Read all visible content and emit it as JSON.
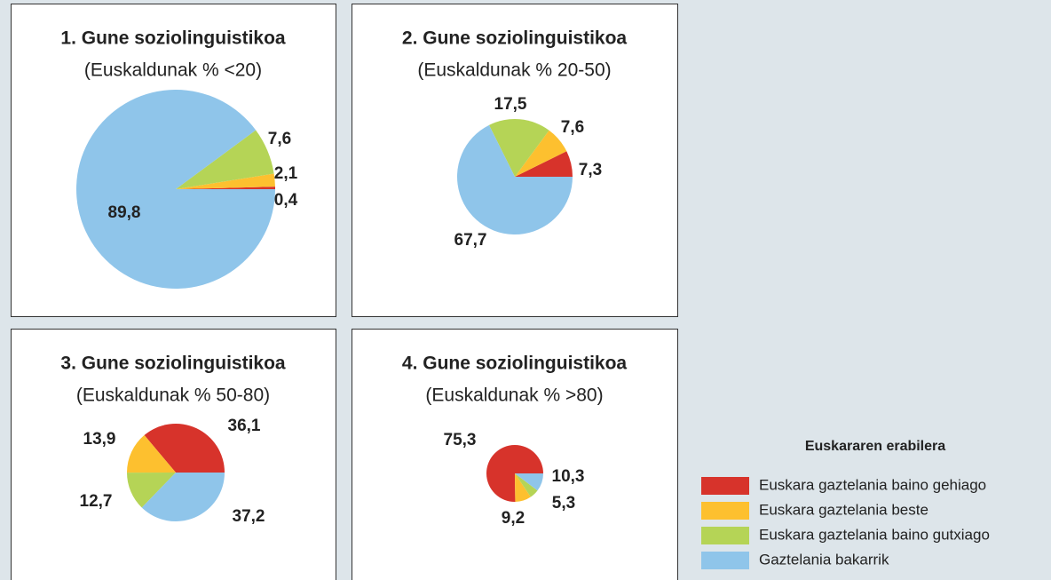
{
  "chart_data": [
    {
      "type": "pie",
      "title": "1. Gune soziolinguistikoa",
      "subtitle": "(Euskaldunak % <20)",
      "categories": [
        "Euskara gaztelania baino gehiago",
        "Euskara gaztelania beste",
        "Euskara gaztelania baino gutxiago",
        "Gaztelania bakarrik"
      ],
      "values": [
        0.4,
        2.1,
        7.6,
        89.8
      ],
      "value_labels": [
        "0,4",
        "2,1",
        "7,6",
        "89,8"
      ],
      "colors": [
        "#d7332b",
        "#fdc02f",
        "#b5d456",
        "#8fc5ea"
      ]
    },
    {
      "type": "pie",
      "title": "2. Gune soziolinguistikoa",
      "subtitle": "(Euskaldunak % 20-50)",
      "categories": [
        "Euskara gaztelania baino gehiago",
        "Euskara gaztelania beste",
        "Euskara gaztelania baino gutxiago",
        "Gaztelania bakarrik"
      ],
      "values": [
        7.3,
        7.6,
        17.5,
        67.7
      ],
      "value_labels": [
        "7,3",
        "7,6",
        "17,5",
        "67,7"
      ],
      "colors": [
        "#d7332b",
        "#fdc02f",
        "#b5d456",
        "#8fc5ea"
      ]
    },
    {
      "type": "pie",
      "title": "3. Gune soziolinguistikoa",
      "subtitle": "(Euskaldunak % 50-80)",
      "categories": [
        "Euskara gaztelania baino gehiago",
        "Euskara gaztelania beste",
        "Euskara gaztelania baino gutxiago",
        "Gaztelania bakarrik"
      ],
      "values": [
        36.1,
        13.9,
        12.7,
        37.2
      ],
      "value_labels": [
        "36,1",
        "13,9",
        "12,7",
        "37,2"
      ],
      "colors": [
        "#d7332b",
        "#fdc02f",
        "#b5d456",
        "#8fc5ea"
      ]
    },
    {
      "type": "pie",
      "title": "4. Gune soziolinguistikoa",
      "subtitle": "(Euskaldunak % >80)",
      "categories": [
        "Euskara gaztelania baino gehiago",
        "Euskara gaztelania beste",
        "Euskara gaztelania baino gutxiago",
        "Gaztelania bakarrik"
      ],
      "values": [
        75.3,
        9.2,
        5.3,
        10.3
      ],
      "value_labels": [
        "75,3",
        "9,2",
        "5,3",
        "10,3"
      ],
      "colors": [
        "#d7332b",
        "#fdc02f",
        "#b5d456",
        "#8fc5ea"
      ],
      "legend": {
        "title": "Euskararen erabilera"
      }
    }
  ]
}
